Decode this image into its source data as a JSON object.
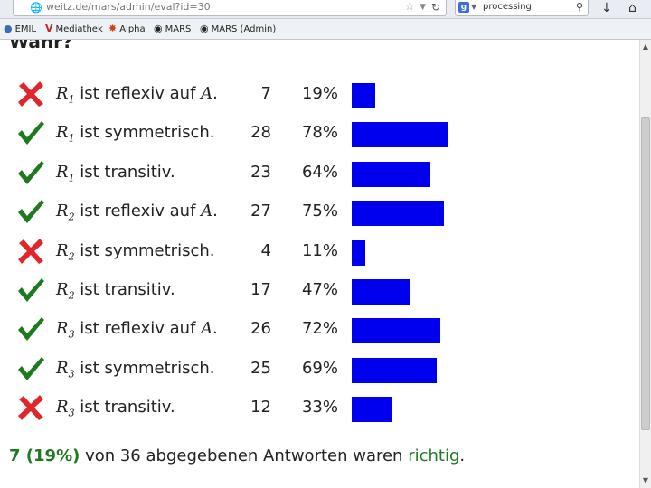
{
  "browser": {
    "url": "weitz.de/mars/admin/eval?id=30",
    "search_query": "processing",
    "bookmarks": [
      "EMIL",
      "Mediathek",
      "Alpha",
      "MARS",
      "MARS (Admin)"
    ]
  },
  "heading": "Wahr?",
  "rows": [
    {
      "correct": false,
      "var": "R",
      "sub": "1",
      "text": "ist reflexiv auf",
      "set": "A",
      "end": ".",
      "count": "7",
      "percent": "19%",
      "ratio": 0.19
    },
    {
      "correct": true,
      "var": "R",
      "sub": "1",
      "text": "ist symmetrisch.",
      "set": "",
      "end": "",
      "count": "28",
      "percent": "78%",
      "ratio": 0.78
    },
    {
      "correct": true,
      "var": "R",
      "sub": "1",
      "text": "ist transitiv.",
      "set": "",
      "end": "",
      "count": "23",
      "percent": "64%",
      "ratio": 0.64
    },
    {
      "correct": true,
      "var": "R",
      "sub": "2",
      "text": "ist reflexiv auf",
      "set": "A",
      "end": ".",
      "count": "27",
      "percent": "75%",
      "ratio": 0.75
    },
    {
      "correct": false,
      "var": "R",
      "sub": "2",
      "text": "ist symmetrisch.",
      "set": "",
      "end": "",
      "count": "4",
      "percent": "11%",
      "ratio": 0.11
    },
    {
      "correct": true,
      "var": "R",
      "sub": "2",
      "text": "ist transitiv.",
      "set": "",
      "end": "",
      "count": "17",
      "percent": "47%",
      "ratio": 0.47
    },
    {
      "correct": true,
      "var": "R",
      "sub": "3",
      "text": "ist reflexiv auf",
      "set": "A",
      "end": ".",
      "count": "26",
      "percent": "72%",
      "ratio": 0.72
    },
    {
      "correct": true,
      "var": "R",
      "sub": "3",
      "text": "ist symmetrisch.",
      "set": "",
      "end": "",
      "count": "25",
      "percent": "69%",
      "ratio": 0.69
    },
    {
      "correct": false,
      "var": "R",
      "sub": "3",
      "text": "ist transitiv.",
      "set": "",
      "end": "",
      "count": "12",
      "percent": "33%",
      "ratio": 0.33
    }
  ],
  "footer": {
    "result": "7 (19%)",
    "middle": "von 36 abgegebenen Antworten waren",
    "word": "richtig",
    "end": "."
  },
  "colors": {
    "bar": "#0000ee",
    "check": "#1f7a1f",
    "cross": "#e0262b",
    "correct_text": "#1f7a1f"
  },
  "icons": {
    "correct": "check-icon",
    "wrong": "cross-icon"
  }
}
